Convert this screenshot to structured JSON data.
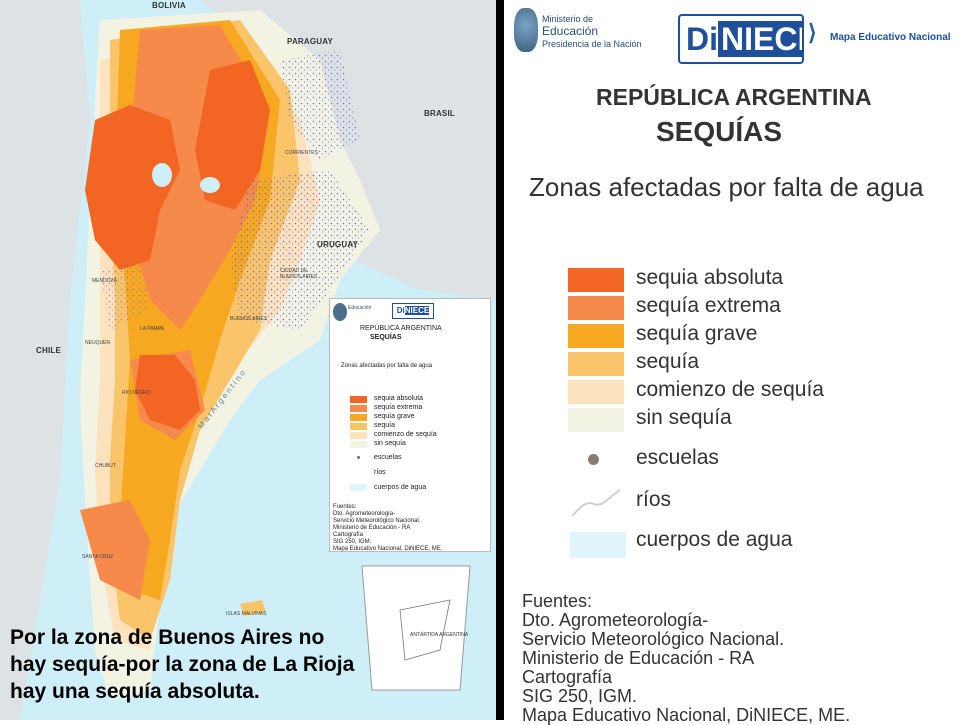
{
  "map": {
    "countries": [
      "BOLIVIA",
      "PARAGUAY",
      "BRASIL",
      "URUGUAY",
      "CHILE"
    ],
    "sea_label": "M a r   A r g e n t i n o",
    "islands_label": "ISLAS MALVINAS",
    "antarctic_label": "ANTÁRTIDA ARGENTINA",
    "provinces": [
      "CORRIENTES",
      "CIUDAD DE BUENOS AIRES",
      "BUENOS AIRES",
      "MENDOZA",
      "NEUQUEN",
      "RIO NEGRO",
      "LA PAMPA",
      "CHUBUT",
      "SANTA CRUZ"
    ]
  },
  "caption": {
    "line1": "Por la zona de Buenos Aires no",
    "line2": "hay sequía-por la zona de La Rioja",
    "line3": "hay una sequía absoluta."
  },
  "legend": {
    "ministry_line1": "Ministerio de",
    "ministry_line2": "Educación",
    "ministry_line3": "Presidencia de la Nación",
    "brand_di": "Di",
    "brand_niece": "NIECE",
    "brand_sub": "Mapa Educativo Nacional",
    "title1": "REPÚBLICA ARGENTINA",
    "title2": "SEQUÍAS",
    "subtitle": "Zonas afectadas por falta de agua",
    "items": [
      {
        "label": "sequia absoluta",
        "color": "#f26522"
      },
      {
        "label": "sequía extrema",
        "color": "#f58a4a"
      },
      {
        "label": "sequía grave",
        "color": "#f7a821"
      },
      {
        "label": "sequía",
        "color": "#f9c46a"
      },
      {
        "label": "comienzo de sequía",
        "color": "#fce2bd"
      },
      {
        "label": "sin sequía",
        "color": "#f3f3e3"
      }
    ],
    "schools": "escuelas",
    "rivers": "ríos",
    "water": "cuerpos de agua",
    "water_color": "#dff4fb",
    "sources": [
      "Fuentes:",
      "Dto.  Agrometeorología-",
      "Servicio Meteorológico Nacional.",
      "Ministerio de Educación - RA",
      "Cartografía",
      "SIG 250, IGM.",
      "Mapa Educativo Nacional, DiNIECE, ME."
    ]
  }
}
